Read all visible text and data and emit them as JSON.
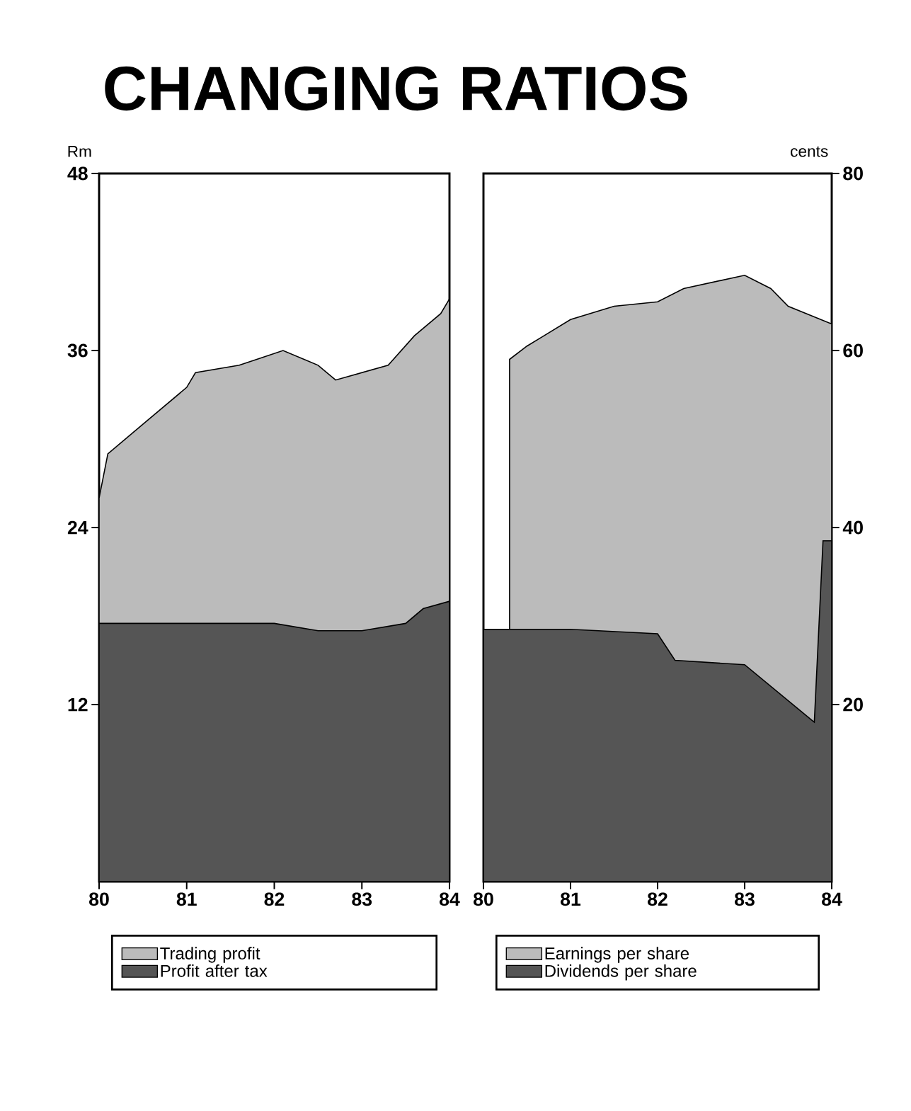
{
  "chart_data": [
    {
      "type": "area",
      "title": "CHANGING RATIOS",
      "ylabel": "Rm",
      "xlim": [
        80,
        84
      ],
      "xticks": [
        80,
        81,
        82,
        83,
        84
      ],
      "ylim": [
        0,
        48
      ],
      "yticks": [
        12,
        24,
        36,
        48
      ],
      "legend": "bottom",
      "series": [
        {
          "name": "Trading profit",
          "color": "#bbbbbb",
          "x": [
            80,
            80.1,
            80.5,
            81,
            81.1,
            81.6,
            82.1,
            82.5,
            82.7,
            83.3,
            83.6,
            83.9,
            84
          ],
          "values": [
            26,
            29,
            31,
            33.5,
            34.5,
            35,
            36,
            35,
            34,
            35,
            37,
            38.5,
            39.5
          ]
        },
        {
          "name": "Profit after tax",
          "color": "#555555",
          "x": [
            80,
            81,
            82,
            82.5,
            83,
            83.5,
            83.7,
            84
          ],
          "values": [
            17.5,
            17.5,
            17.5,
            17,
            17,
            17.5,
            18.5,
            19
          ]
        }
      ]
    },
    {
      "type": "area",
      "y2label": "cents",
      "xlim": [
        80,
        84
      ],
      "xticks": [
        80,
        81,
        82,
        83,
        84
      ],
      "y2lim": [
        0,
        80
      ],
      "y2ticks": [
        20,
        40,
        60,
        80
      ],
      "legend": "bottom",
      "series": [
        {
          "name": "Earnings per share",
          "color": "#bbbbbb",
          "axis": "y2",
          "x": [
            80.3,
            80.5,
            81,
            81.5,
            82,
            82.3,
            83,
            83.3,
            83.5,
            84
          ],
          "values": [
            59,
            60.5,
            63.5,
            65,
            65.5,
            67,
            68.5,
            67,
            65,
            63
          ]
        },
        {
          "name": "Dividends per share",
          "color": "#555555",
          "axis": "y2",
          "x": [
            80,
            81,
            82,
            82.2,
            83,
            83.8,
            83.9,
            84
          ],
          "values": [
            28.5,
            28.5,
            28,
            25,
            24.5,
            18,
            38.5,
            38.5
          ]
        }
      ]
    }
  ]
}
